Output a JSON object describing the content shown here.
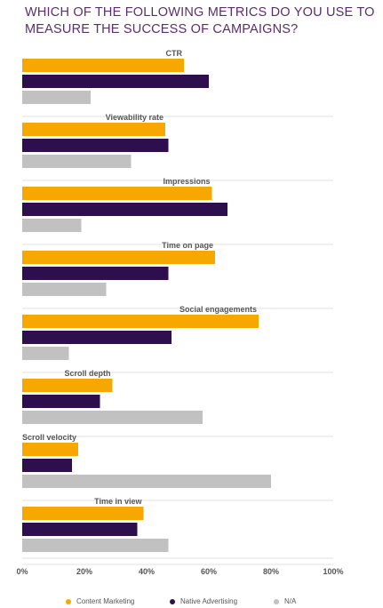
{
  "chart_data": {
    "type": "bar",
    "orientation": "horizontal",
    "title": "WHICH OF THE FOLLOWING METRICS DO YOU USE TO MEASURE THE SUCCESS OF CAMPAIGNS?",
    "categories": [
      "CTR",
      "Viewability rate",
      "Impressions",
      "Time on page",
      "Social engagements",
      "Scroll depth",
      "Scroll velocity",
      "Time in view"
    ],
    "series": [
      {
        "name": "Content Marketing",
        "color": "#f7a800",
        "values": [
          52,
          46,
          61,
          62,
          76,
          29,
          18,
          39
        ]
      },
      {
        "name": "Native Advertising",
        "color": "#2e0f4d",
        "values": [
          60,
          47,
          66,
          47,
          48,
          25,
          16,
          37
        ]
      },
      {
        "name": "N/A",
        "color": "#c1c1c1",
        "values": [
          22,
          35,
          19,
          27,
          15,
          58,
          80,
          47
        ]
      }
    ],
    "xlim": [
      0,
      100
    ],
    "x_ticks": [
      "0%",
      "20%",
      "40%",
      "60%",
      "80%",
      "100%"
    ],
    "grid": false,
    "legend_position": "bottom"
  }
}
